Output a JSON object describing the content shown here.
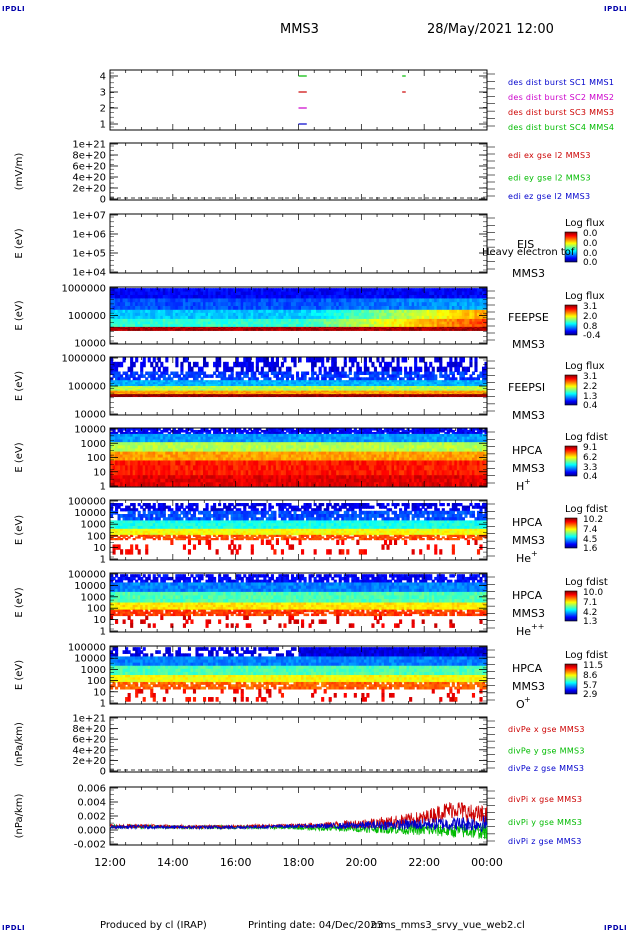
{
  "header": {
    "corner_label": "IPDLI",
    "title": "MMS3",
    "date": "28/May/2021 12:00"
  },
  "footer": {
    "produced_by": "Produced by cl (IRAP)",
    "printing_date": "Printing date: 04/Dec/2023",
    "filename": "mms_mms3_srvy_vue_web2.cl"
  },
  "colors": {
    "mms1": "#0000cc",
    "mms2": "#cc00cc",
    "mms3": "#cc0000",
    "mms4": "#00bb00"
  },
  "chart_data": [
    {
      "type": "scatter",
      "id": "burst",
      "yticks": [
        "4",
        "3",
        "2",
        "1"
      ],
      "ylim": [
        0.5,
        4.5
      ],
      "legend": [
        {
          "text": "des dist burst SC1 MMS1",
          "color": "#0000cc"
        },
        {
          "text": "des dist burst SC2 MMS2",
          "color": "#cc00cc"
        },
        {
          "text": "des dist burst SC3 MMS3",
          "color": "#cc0000"
        },
        {
          "text": "des dist burst SC4 MMS4",
          "color": "#00bb00"
        }
      ],
      "segments": [
        {
          "y": 4,
          "t0": 18.0,
          "t1": 18.2,
          "color": "#00bb00"
        },
        {
          "y": 4,
          "t0": 21.3,
          "t1": 21.35,
          "color": "#00bb00"
        },
        {
          "y": 3,
          "t0": 18.0,
          "t1": 18.2,
          "color": "#cc0000"
        },
        {
          "y": 3,
          "t0": 21.3,
          "t1": 21.35,
          "color": "#cc0000"
        },
        {
          "y": 2,
          "t0": 18.0,
          "t1": 18.2,
          "color": "#cc00cc"
        },
        {
          "y": 1,
          "t0": 18.0,
          "t1": 18.2,
          "color": "#0000cc"
        }
      ]
    },
    {
      "type": "line",
      "id": "edi",
      "ylabel": "(mV/m)",
      "yticks": [
        "1e+21",
        "8e+20",
        "6e+20",
        "4e+20",
        "2e+20",
        "0"
      ],
      "legend": [
        {
          "text": "edi ex gse l2 MMS3",
          "color": "#cc0000"
        },
        {
          "text": "edi ey gse l2 MMS3",
          "color": "#00bb00"
        },
        {
          "text": "edi ez gse l2 MMS3",
          "color": "#0000cc"
        }
      ]
    },
    {
      "type": "heatmap",
      "id": "eis",
      "ylabel": "E (eV)",
      "yticks": [
        "1e+07",
        "1e+06",
        "1e+05",
        "1e+04"
      ],
      "instrument": "EIS",
      "species": "Heavy electron tof",
      "sc": "MMS3",
      "cb_title": "Log flux",
      "cb_ticks": [
        "0.0",
        "0.0",
        "0.0",
        "0.0"
      ]
    },
    {
      "type": "heatmap",
      "id": "feepse",
      "ylabel": "E (eV)",
      "yticks": [
        "1000000",
        "100000",
        "10000"
      ],
      "instrument": "FEEPSE",
      "sc": "MMS3",
      "cb_title": "Log flux",
      "cb_ticks": [
        "3.1",
        "2.0",
        "0.8",
        "-0.4"
      ]
    },
    {
      "type": "heatmap",
      "id": "feepsi",
      "ylabel": "E (eV)",
      "yticks": [
        "1000000",
        "100000",
        "10000"
      ],
      "instrument": "FEEPSI",
      "sc": "MMS3",
      "cb_title": "Log flux",
      "cb_ticks": [
        "3.1",
        "2.2",
        "1.3",
        "0.4"
      ]
    },
    {
      "type": "heatmap",
      "id": "hpca_h",
      "ylabel": "E (eV)",
      "yticks": [
        "10000",
        "1000",
        "100",
        "10",
        "1"
      ],
      "instrument": "HPCA",
      "sc": "MMS3",
      "ion": "H",
      "ion_sup": "+",
      "cb_title": "Log fdist",
      "cb_ticks": [
        "9.1",
        "6.2",
        "3.3",
        "0.4"
      ]
    },
    {
      "type": "heatmap",
      "id": "hpca_he",
      "ylabel": "E (eV)",
      "yticks": [
        "100000",
        "10000",
        "1000",
        "100",
        "10",
        "1"
      ],
      "instrument": "HPCA",
      "sc": "MMS3",
      "ion": "He",
      "ion_sup": "+",
      "cb_title": "Log fdist",
      "cb_ticks": [
        "10.2",
        "7.4",
        "4.5",
        "1.6"
      ]
    },
    {
      "type": "heatmap",
      "id": "hpca_hepp",
      "ylabel": "E (eV)",
      "yticks": [
        "100000",
        "10000",
        "1000",
        "100",
        "10",
        "1"
      ],
      "instrument": "HPCA",
      "sc": "MMS3",
      "ion": "He",
      "ion_sup": "++",
      "cb_title": "Log fdist",
      "cb_ticks": [
        "10.0",
        "7.1",
        "4.2",
        "1.3"
      ]
    },
    {
      "type": "heatmap",
      "id": "hpca_o",
      "ylabel": "E (eV)",
      "yticks": [
        "100000",
        "10000",
        "1000",
        "100",
        "10",
        "1"
      ],
      "instrument": "HPCA",
      "sc": "MMS3",
      "ion": "O",
      "ion_sup": "+",
      "cb_title": "Log fdist",
      "cb_ticks": [
        "11.5",
        "8.6",
        "5.7",
        "2.9"
      ]
    },
    {
      "type": "line",
      "id": "divpe",
      "ylabel": "(nPa/km)",
      "yticks": [
        "1e+21",
        "8e+20",
        "6e+20",
        "4e+20",
        "2e+20",
        "0"
      ],
      "legend": [
        {
          "text": "divPe x gse MMS3",
          "color": "#cc0000"
        },
        {
          "text": "divPe y gse MMS3",
          "color": "#00bb00"
        },
        {
          "text": "divPe z gse MMS3",
          "color": "#0000cc"
        }
      ]
    },
    {
      "type": "line",
      "id": "divpi",
      "ylabel": "(nPa/km)",
      "yticks": [
        "0.006",
        "0.004",
        "0.002",
        "0.000",
        "-0.002"
      ],
      "ylim": [
        -0.003,
        0.0068
      ],
      "legend": [
        {
          "text": "divPi x gse MMS3",
          "color": "#cc0000"
        },
        {
          "text": "divPi y gse MMS3",
          "color": "#00bb00"
        },
        {
          "text": "divPi z gse MMS3",
          "color": "#0000cc"
        }
      ],
      "series": [
        {
          "name": "divPi x gse MMS3",
          "x": [
            12,
            13,
            14,
            15,
            16,
            17,
            18,
            19,
            20,
            21,
            22,
            22.5,
            23,
            23.5,
            24
          ],
          "y": [
            0.0002,
            0.0002,
            0.0001,
            0.0001,
            0.0001,
            0.0002,
            0.0003,
            0.0004,
            0.0006,
            0.0009,
            0.0015,
            0.0025,
            0.0032,
            0.0022,
            0.0018
          ]
        },
        {
          "name": "divPi y gse MMS3",
          "x": [
            12,
            13,
            14,
            15,
            16,
            17,
            18,
            19,
            20,
            21,
            22,
            23,
            24
          ],
          "y": [
            0.0001,
            0.0001,
            0.0,
            0.0,
            0.0,
            0.0,
            -0.0001,
            -0.0002,
            -0.0002,
            -0.0003,
            -0.0004,
            -0.0006,
            -0.0007
          ]
        },
        {
          "name": "divPi z gse MMS3",
          "x": [
            12,
            13,
            14,
            15,
            16,
            17,
            18,
            19,
            20,
            21,
            22,
            23,
            24
          ],
          "y": [
            0.0,
            0.0001,
            0.0,
            0.0,
            0.0,
            0.0001,
            0.0002,
            0.0002,
            0.0003,
            0.0004,
            0.0005,
            0.0006,
            0.0006
          ]
        }
      ]
    }
  ],
  "time_axis": {
    "ticks": [
      "12:00",
      "14:00",
      "16:00",
      "18:00",
      "20:00",
      "22:00",
      "00:00"
    ],
    "range_hours": [
      12,
      24
    ]
  }
}
